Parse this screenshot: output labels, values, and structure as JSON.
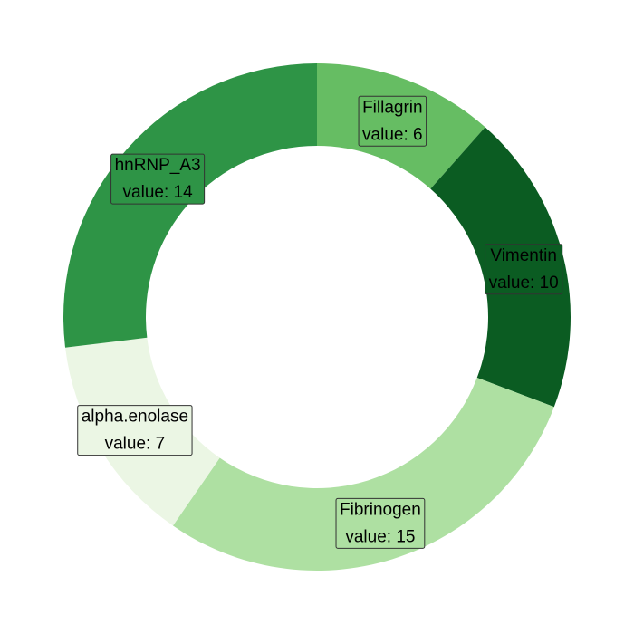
{
  "chart_data": {
    "type": "pie",
    "donut": true,
    "title": "",
    "value_prefix": "value: ",
    "slices": [
      {
        "label": "Fillagrin",
        "value": 6,
        "color": "#66bd63",
        "text_color": "#000000"
      },
      {
        "label": "Vimentin",
        "value": 10,
        "color": "#0b5c22",
        "text_color": "#000000"
      },
      {
        "label": "Fibrinogen",
        "value": 15,
        "color": "#aee0a2",
        "text_color": "#000000"
      },
      {
        "label": "alpha.enolase",
        "value": 7,
        "color": "#ebf6e4",
        "text_color": "#000000"
      },
      {
        "label": "hnRNP_A3",
        "value": 14,
        "color": "#2e9446",
        "text_color": "#000000"
      }
    ]
  }
}
